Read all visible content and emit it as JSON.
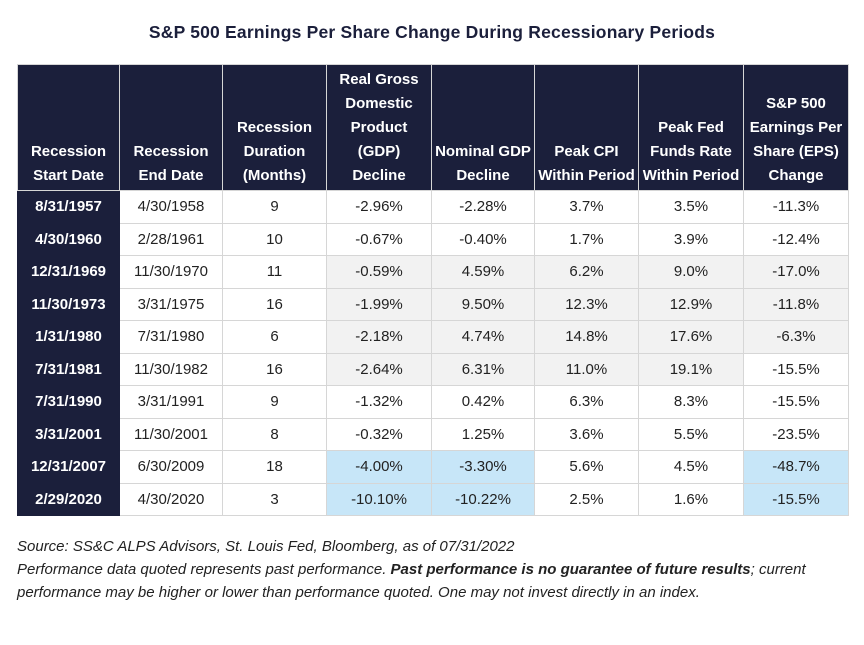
{
  "title": "S&P 500 Earnings Per Share Change During Recessionary Periods",
  "chart_data": {
    "type": "table",
    "columns": [
      "Recession Start Date",
      "Recession End Date",
      "Recession Duration (Months)",
      "Real Gross Domestic Product (GDP) Decline",
      "Nominal GDP Decline",
      "Peak CPI Within Period",
      "Peak Fed Funds Rate Within Period",
      "S&P 500 Earnings Per Share (EPS) Change"
    ],
    "rows": [
      [
        "8/31/1957",
        "4/30/1958",
        "9",
        "-2.96%",
        "-2.28%",
        "3.7%",
        "3.5%",
        "-11.3%"
      ],
      [
        "4/30/1960",
        "2/28/1961",
        "10",
        "-0.67%",
        "-0.40%",
        "1.7%",
        "3.9%",
        "-12.4%"
      ],
      [
        "12/31/1969",
        "11/30/1970",
        "11",
        "-0.59%",
        "4.59%",
        "6.2%",
        "9.0%",
        "-17.0%"
      ],
      [
        "11/30/1973",
        "3/31/1975",
        "16",
        "-1.99%",
        "9.50%",
        "12.3%",
        "12.9%",
        "-11.8%"
      ],
      [
        "1/31/1980",
        "7/31/1980",
        "6",
        "-2.18%",
        "4.74%",
        "14.8%",
        "17.6%",
        "-6.3%"
      ],
      [
        "7/31/1981",
        "11/30/1982",
        "16",
        "-2.64%",
        "6.31%",
        "11.0%",
        "19.1%",
        "-15.5%"
      ],
      [
        "7/31/1990",
        "3/31/1991",
        "9",
        "-1.32%",
        "0.42%",
        "6.3%",
        "8.3%",
        "-15.5%"
      ],
      [
        "3/31/2001",
        "11/30/2001",
        "8",
        "-0.32%",
        "1.25%",
        "3.6%",
        "5.5%",
        "-23.5%"
      ],
      [
        "12/31/2007",
        "6/30/2009",
        "18",
        "-4.00%",
        "-3.30%",
        "5.6%",
        "4.5%",
        "-48.7%"
      ],
      [
        "2/29/2020",
        "4/30/2020",
        "3",
        "-10.10%",
        "-10.22%",
        "2.5%",
        "1.6%",
        "-15.5%"
      ]
    ],
    "highlighted_cells": [
      [
        8,
        3
      ],
      [
        8,
        4
      ],
      [
        8,
        7
      ],
      [
        9,
        3
      ],
      [
        9,
        4
      ],
      [
        9,
        7
      ]
    ]
  },
  "notes": {
    "source": "Source: SS&C ALPS Advisors, St. Louis Fed, Bloomberg, as of 07/31/2022",
    "perf_text": "Performance data quoted represents past performance. ",
    "perf_bold": "Past performance is no guarantee of future results",
    "perf_rest": "; current performance may be higher or lower than performance quoted. One may not invest directly in an index."
  },
  "colors": {
    "header_bg": "#1b1f3b",
    "highlight": "#c7e6f8",
    "shade": "#f2f2f2"
  }
}
